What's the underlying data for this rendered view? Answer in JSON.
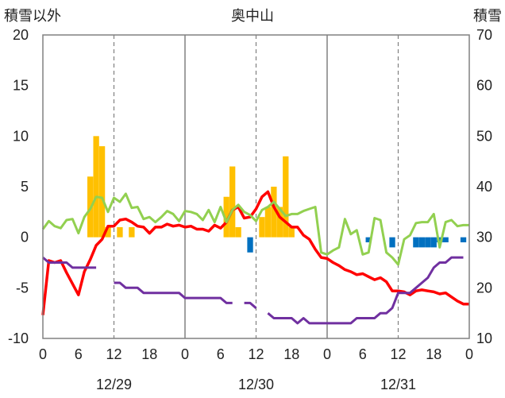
{
  "chart_data": {
    "type": "bar+line",
    "title": "奥中山",
    "left_axis_label": "積雪以外",
    "right_axis_label": "積雪",
    "left_ylim": [
      -10,
      20
    ],
    "left_yticks": [
      -10,
      -5,
      0,
      5,
      10,
      15,
      20
    ],
    "right_ylim": [
      10,
      70
    ],
    "right_yticks": [
      10,
      20,
      30,
      40,
      50,
      60,
      70
    ],
    "x_hours_range": [
      0,
      72
    ],
    "x_tick_hours": [
      0,
      6,
      12,
      18,
      24,
      30,
      36,
      42,
      48,
      54,
      60,
      66,
      72
    ],
    "x_tick_labels": [
      "0",
      "6",
      "12",
      "18",
      "0",
      "6",
      "12",
      "18",
      "0",
      "6",
      "12",
      "18",
      "0"
    ],
    "day_labels": [
      {
        "hour": 12,
        "label": "12/29"
      },
      {
        "hour": 36,
        "label": "12/30"
      },
      {
        "hour": 60,
        "label": "12/31"
      }
    ],
    "grid": {
      "vertical_solid_hours": [
        24,
        48
      ],
      "vertical_dashed_hours": [
        12,
        36,
        60
      ],
      "horizontal": false
    },
    "colors": {
      "bars_positive": "#ffc000",
      "bars_negative": "#0070c0",
      "red_line": "#ff0000",
      "green_line": "#92d050",
      "purple_line": "#7030a0"
    },
    "bars": [
      {
        "hour": 8,
        "value": 6
      },
      {
        "hour": 9,
        "value": 10
      },
      {
        "hour": 10,
        "value": 9
      },
      {
        "hour": 11,
        "value": 1
      },
      {
        "hour": 13,
        "value": 1
      },
      {
        "hour": 15,
        "value": 1
      },
      {
        "hour": 31,
        "value": 4
      },
      {
        "hour": 32,
        "value": 7
      },
      {
        "hour": 33,
        "value": 1
      },
      {
        "hour": 35,
        "value": -1.5
      },
      {
        "hour": 37,
        "value": 2
      },
      {
        "hour": 38,
        "value": 3
      },
      {
        "hour": 39,
        "value": 5
      },
      {
        "hour": 40,
        "value": 3
      },
      {
        "hour": 41,
        "value": 8
      },
      {
        "hour": 42,
        "value": 1
      },
      {
        "hour": 55,
        "value": -0.5
      },
      {
        "hour": 59,
        "value": -1
      },
      {
        "hour": 63,
        "value": -1
      },
      {
        "hour": 64,
        "value": -1
      },
      {
        "hour": 65,
        "value": -1
      },
      {
        "hour": 66,
        "value": -1
      },
      {
        "hour": 67,
        "value": -0.5
      },
      {
        "hour": 68,
        "value": -0.5
      },
      {
        "hour": 71,
        "value": -0.5
      }
    ],
    "series": [
      {
        "axis": "left",
        "points": [
          [
            0,
            -7.7
          ],
          [
            1,
            -2.3
          ],
          [
            2,
            -2.5
          ],
          [
            3,
            -2.3
          ],
          [
            4,
            -3.5
          ],
          [
            5,
            -4.6
          ],
          [
            6,
            -5.7
          ],
          [
            7,
            -3.4
          ],
          [
            8,
            -2.2
          ],
          [
            9,
            -0.8
          ],
          [
            10,
            -0.2
          ],
          [
            11,
            1.1
          ],
          [
            12,
            1.1
          ],
          [
            13,
            1.7
          ],
          [
            14,
            1.8
          ],
          [
            15,
            1.5
          ],
          [
            16,
            1.1
          ],
          [
            17,
            1.0
          ],
          [
            18,
            0.4
          ],
          [
            19,
            1.0
          ],
          [
            20,
            1.0
          ],
          [
            21,
            1.3
          ],
          [
            22,
            1.1
          ],
          [
            23,
            1.2
          ],
          [
            24,
            1.0
          ],
          [
            25,
            1.1
          ],
          [
            26,
            0.8
          ],
          [
            27,
            0.8
          ],
          [
            28,
            0.6
          ],
          [
            29,
            1.2
          ],
          [
            30,
            0.9
          ],
          [
            31,
            1.5
          ],
          [
            32,
            2.7
          ],
          [
            33,
            3.0
          ],
          [
            34,
            1.9
          ],
          [
            35,
            2.0
          ],
          [
            36,
            2.8
          ],
          [
            37,
            4.0
          ],
          [
            38,
            4.5
          ],
          [
            39,
            3.0
          ],
          [
            40,
            2.0
          ],
          [
            41,
            1.5
          ],
          [
            42,
            1.0
          ],
          [
            43,
            1.0
          ],
          [
            44,
            0.2
          ],
          [
            45,
            -0.2
          ],
          [
            46,
            -1.2
          ],
          [
            47,
            -2.0
          ],
          [
            48,
            -2.1
          ],
          [
            49,
            -2.5
          ],
          [
            50,
            -2.8
          ],
          [
            51,
            -3.2
          ],
          [
            52,
            -3.4
          ],
          [
            53,
            -3.7
          ],
          [
            54,
            -3.6
          ],
          [
            55,
            -3.9
          ],
          [
            56,
            -4.2
          ],
          [
            57,
            -4.0
          ],
          [
            58,
            -4.4
          ],
          [
            59,
            -5.3
          ],
          [
            60,
            -5.3
          ],
          [
            61,
            -5.4
          ],
          [
            62,
            -5.7
          ],
          [
            63,
            -5.3
          ],
          [
            64,
            -5.2
          ],
          [
            65,
            -5.3
          ],
          [
            66,
            -5.4
          ],
          [
            67,
            -5.6
          ],
          [
            68,
            -5.5
          ],
          [
            69,
            -5.9
          ],
          [
            70,
            -6.3
          ],
          [
            71,
            -6.6
          ],
          [
            72,
            -6.6
          ]
        ],
        "color": "#ff0000"
      },
      {
        "axis": "left",
        "points": [
          [
            0,
            0.8
          ],
          [
            1,
            1.6
          ],
          [
            2,
            1.1
          ],
          [
            3,
            0.9
          ],
          [
            4,
            1.7
          ],
          [
            5,
            1.8
          ],
          [
            6,
            0.4
          ],
          [
            7,
            2.0
          ],
          [
            8,
            2.8
          ],
          [
            9,
            4.0
          ],
          [
            10,
            3.9
          ],
          [
            11,
            2.5
          ],
          [
            12,
            3.9
          ],
          [
            13,
            3.5
          ],
          [
            14,
            4.3
          ],
          [
            15,
            2.9
          ],
          [
            16,
            3.0
          ],
          [
            17,
            1.8
          ],
          [
            18,
            2.0
          ],
          [
            19,
            1.5
          ],
          [
            20,
            2.0
          ],
          [
            21,
            2.6
          ],
          [
            22,
            2.3
          ],
          [
            23,
            1.6
          ],
          [
            24,
            2.6
          ],
          [
            25,
            2.5
          ],
          [
            26,
            2.3
          ],
          [
            27,
            1.7
          ],
          [
            28,
            2.7
          ],
          [
            29,
            1.5
          ],
          [
            30,
            3.0
          ],
          [
            31,
            1.5
          ],
          [
            32,
            2.7
          ],
          [
            33,
            3.2
          ],
          [
            34,
            2.5
          ],
          [
            35,
            2.2
          ],
          [
            36,
            1.6
          ],
          [
            37,
            2.7
          ],
          [
            38,
            3.0
          ],
          [
            39,
            3.5
          ],
          [
            40,
            2.8
          ],
          [
            41,
            2.1
          ],
          [
            42,
            2.3
          ],
          [
            43,
            2.3
          ],
          [
            44,
            2.6
          ],
          [
            45,
            2.8
          ],
          [
            46,
            3.0
          ],
          [
            47,
            -1.5
          ],
          [
            48,
            -1.7
          ],
          [
            49,
            -1.3
          ],
          [
            50,
            -1.0
          ],
          [
            51,
            1.8
          ],
          [
            52,
            0.3
          ],
          [
            53,
            0.7
          ],
          [
            54,
            -1.7
          ],
          [
            55,
            -1.5
          ],
          [
            56,
            1.9
          ],
          [
            57,
            1.7
          ],
          [
            58,
            -1.5
          ],
          [
            59,
            -2.0
          ],
          [
            60,
            -2.7
          ],
          [
            61,
            -0.2
          ],
          [
            62,
            0.2
          ],
          [
            63,
            1.4
          ],
          [
            64,
            1.5
          ],
          [
            65,
            1.5
          ],
          [
            66,
            2.3
          ],
          [
            67,
            -1.0
          ],
          [
            68,
            1.5
          ],
          [
            69,
            1.7
          ],
          [
            70,
            1.1
          ],
          [
            71,
            1.2
          ],
          [
            72,
            1.2
          ]
        ],
        "color": "#92d050"
      },
      {
        "axis": "right",
        "segments": [
          [
            [
              0,
              26
            ],
            [
              1,
              25
            ],
            [
              2,
              25
            ],
            [
              3,
              25
            ],
            [
              4,
              25
            ],
            [
              5,
              24
            ],
            [
              6,
              24
            ],
            [
              7,
              24
            ],
            [
              8,
              24
            ],
            [
              9,
              24
            ]
          ],
          [
            [
              12,
              21
            ],
            [
              13,
              21
            ],
            [
              14,
              20
            ],
            [
              15,
              20
            ],
            [
              16,
              20
            ],
            [
              17,
              19
            ],
            [
              18,
              19
            ],
            [
              19,
              19
            ],
            [
              20,
              19
            ],
            [
              21,
              19
            ],
            [
              22,
              19
            ],
            [
              23,
              19
            ],
            [
              24,
              18
            ],
            [
              25,
              18
            ],
            [
              26,
              18
            ],
            [
              27,
              18
            ],
            [
              28,
              18
            ],
            [
              29,
              18
            ],
            [
              30,
              18
            ],
            [
              31,
              17
            ],
            [
              32,
              17
            ]
          ],
          [
            [
              34,
              17
            ],
            [
              35,
              17
            ],
            [
              36,
              16
            ]
          ],
          [
            [
              38,
              15
            ],
            [
              39,
              14
            ],
            [
              40,
              14
            ],
            [
              41,
              14
            ],
            [
              42,
              14
            ],
            [
              43,
              13
            ],
            [
              44,
              14
            ],
            [
              45,
              13
            ],
            [
              46,
              13
            ],
            [
              47,
              13
            ],
            [
              48,
              13
            ],
            [
              49,
              13
            ],
            [
              50,
              13
            ],
            [
              51,
              13
            ],
            [
              52,
              13
            ],
            [
              53,
              14
            ],
            [
              54,
              14
            ],
            [
              55,
              14
            ],
            [
              56,
              14
            ],
            [
              57,
              15
            ],
            [
              58,
              15
            ],
            [
              59,
              16
            ],
            [
              60,
              19
            ],
            [
              61,
              19
            ],
            [
              62,
              19
            ],
            [
              63,
              20
            ],
            [
              64,
              21
            ],
            [
              65,
              22
            ],
            [
              66,
              24
            ],
            [
              67,
              25
            ],
            [
              68,
              25
            ],
            [
              69,
              26
            ],
            [
              70,
              26
            ],
            [
              71,
              26
            ]
          ]
        ],
        "color": "#7030a0"
      }
    ]
  }
}
